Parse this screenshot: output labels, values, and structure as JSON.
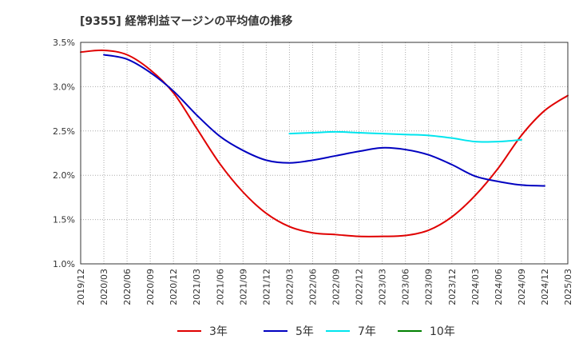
{
  "chart_data": {
    "type": "line",
    "title": "[9355]  経常利益マージンの平均値の推移",
    "xlabel": "",
    "ylabel": "",
    "ylim": [
      1.0,
      3.5
    ],
    "yticks": [
      "3.5%",
      "3.0%",
      "2.5%",
      "2.0%",
      "1.5%",
      "1.0%"
    ],
    "xticks": [
      "2019/12",
      "2020/03",
      "2020/06",
      "2020/09",
      "2020/12",
      "2021/03",
      "2021/06",
      "2021/09",
      "2021/12",
      "2022/03",
      "2022/06",
      "2022/09",
      "2022/12",
      "2023/03",
      "2023/06",
      "2023/09",
      "2023/12",
      "2024/03",
      "2024/06",
      "2024/09",
      "2024/12",
      "2025/03"
    ],
    "grid": true,
    "legend_position": "bottom",
    "series": [
      {
        "name": "3年",
        "color": "#e00000",
        "values": [
          3.39,
          3.41,
          3.36,
          3.19,
          2.93,
          2.53,
          2.13,
          1.81,
          1.57,
          1.42,
          1.35,
          1.33,
          1.31,
          1.31,
          1.32,
          1.38,
          1.53,
          1.77,
          2.08,
          2.45,
          2.73,
          2.9
        ],
        "start_index": 0
      },
      {
        "name": "5年",
        "color": "#0000c0",
        "values": [
          3.36,
          3.31,
          3.16,
          2.95,
          2.68,
          2.44,
          2.28,
          2.17,
          2.14,
          2.17,
          2.22,
          2.27,
          2.31,
          2.29,
          2.23,
          2.12,
          1.99,
          1.93,
          1.89,
          1.88
        ],
        "start_index": 1
      },
      {
        "name": "7年",
        "color": "#00e5ee",
        "values": [
          2.47,
          2.48,
          2.49,
          2.48,
          2.47,
          2.46,
          2.45,
          2.42,
          2.38,
          2.38,
          2.4
        ],
        "start_index": 9
      },
      {
        "name": "10年",
        "color": "#008000",
        "values": [],
        "start_index": 0
      }
    ]
  }
}
